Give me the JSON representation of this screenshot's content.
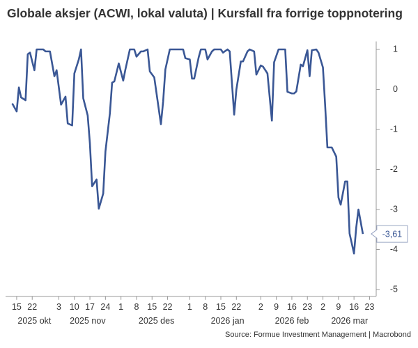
{
  "chart_data": {
    "type": "line",
    "title": "Globale aksjer (ACWI, lokal valuta) | Kursfall fra forrige toppnotering",
    "source": "Source: Formue Investment Management | Macrobond",
    "x": [
      "2025-10-13",
      "2025-10-15",
      "2025-10-16",
      "2025-10-17",
      "2025-10-19",
      "2025-10-20",
      "2025-10-21",
      "2025-10-23",
      "2025-10-24",
      "2025-10-27",
      "2025-10-28",
      "2025-10-30",
      "2025-11-01",
      "2025-11-02",
      "2025-11-04",
      "2025-11-06",
      "2025-11-07",
      "2025-11-09",
      "2025-11-10",
      "2025-11-12",
      "2025-11-13",
      "2025-11-14",
      "2025-11-16",
      "2025-11-17",
      "2025-11-18",
      "2025-11-20",
      "2025-11-21",
      "2025-11-23",
      "2025-11-24",
      "2025-11-26",
      "2025-11-27",
      "2025-11-28",
      "2025-11-30",
      "2025-12-02",
      "2025-12-03",
      "2025-12-05",
      "2025-12-07",
      "2025-12-08",
      "2025-12-10",
      "2025-12-11",
      "2025-12-13",
      "2025-12-14",
      "2025-12-16",
      "2025-12-19",
      "2025-12-20",
      "2025-12-21",
      "2025-12-23",
      "2025-12-29",
      "2025-12-30",
      "2026-01-01",
      "2026-01-02",
      "2026-01-03",
      "2026-01-05",
      "2026-01-06",
      "2026-01-08",
      "2026-01-09",
      "2026-01-11",
      "2026-01-12",
      "2026-01-15",
      "2026-01-16",
      "2026-01-18",
      "2026-01-19",
      "2026-01-21",
      "2026-01-22",
      "2026-01-24",
      "2026-01-25",
      "2026-01-27",
      "2026-01-28",
      "2026-01-30",
      "2026-01-31",
      "2026-02-02",
      "2026-02-03",
      "2026-02-05",
      "2026-02-07",
      "2026-02-08",
      "2026-02-10",
      "2026-02-13",
      "2026-02-14",
      "2026-02-16",
      "2026-02-17",
      "2026-02-18",
      "2026-02-20",
      "2026-02-21",
      "2026-02-23",
      "2026-02-24",
      "2026-02-25",
      "2026-02-27",
      "2026-02-28",
      "2026-03-02",
      "2026-03-03",
      "2026-03-04",
      "2026-03-06",
      "2026-03-08",
      "2026-03-09",
      "2026-03-10",
      "2026-03-12",
      "2026-03-13",
      "2026-03-14",
      "2026-03-16",
      "2026-03-17",
      "2026-03-18",
      "2026-03-20"
    ],
    "series": [
      {
        "name": "ACWI",
        "color": "#3a5795",
        "values": [
          -0.35,
          -0.55,
          0.05,
          -0.2,
          -0.27,
          0.88,
          0.92,
          0.48,
          1.0,
          1.0,
          0.95,
          0.95,
          0.33,
          0.48,
          -0.38,
          -0.18,
          -0.85,
          -0.9,
          0.4,
          0.75,
          1.0,
          -0.22,
          -0.65,
          -1.35,
          -2.42,
          -2.25,
          -2.98,
          -2.6,
          -1.55,
          -0.6,
          0.17,
          0.2,
          0.65,
          0.22,
          0.5,
          1.0,
          1.0,
          0.82,
          0.95,
          0.95,
          1.0,
          0.45,
          0.3,
          -0.87,
          -0.3,
          0.5,
          1.0,
          1.0,
          0.78,
          0.75,
          0.27,
          0.27,
          0.8,
          1.0,
          1.0,
          0.75,
          0.95,
          1.0,
          1.0,
          0.92,
          1.0,
          0.95,
          -0.63,
          0.0,
          0.7,
          0.7,
          0.95,
          1.0,
          0.95,
          0.37,
          0.6,
          0.57,
          0.4,
          -0.78,
          0.68,
          1.0,
          1.0,
          -0.06,
          -0.1,
          -0.1,
          -0.05,
          0.62,
          0.58,
          0.98,
          0.33,
          0.98,
          1.0,
          0.92,
          0.55,
          -0.4,
          -1.45,
          -1.45,
          -1.68,
          -2.7,
          -2.88,
          -2.3,
          -2.3,
          -3.6,
          -4.1,
          -3.45,
          -3.0,
          -3.61
        ],
        "value_labels": [
          null,
          null,
          null,
          null,
          null,
          null,
          null,
          null,
          null,
          null,
          null,
          null,
          null,
          null,
          null,
          null,
          null,
          null,
          null,
          null,
          null,
          null,
          null,
          null,
          null,
          null,
          null,
          null,
          null,
          null,
          null,
          null,
          null,
          null,
          null,
          null,
          null,
          null,
          null,
          null,
          null,
          null,
          null,
          null,
          null,
          null,
          null,
          null,
          null,
          null,
          null,
          null,
          null,
          null,
          null,
          null,
          null,
          null,
          null,
          null,
          null,
          null,
          null,
          null,
          null,
          null,
          null,
          null,
          null,
          null,
          null,
          null,
          null,
          null,
          null,
          null,
          null,
          null,
          null,
          null,
          null,
          null,
          null,
          null,
          null,
          null,
          null,
          null,
          null,
          null,
          null,
          null,
          null,
          null,
          null,
          null,
          null,
          null,
          null,
          null,
          null,
          "-3,61"
        ]
      }
    ],
    "xlim": [
      "2025-10-10",
      "2026-03-26"
    ],
    "xticks": [
      {
        "value": "2025-10-15",
        "label": "15"
      },
      {
        "value": "2025-10-22",
        "label": "22"
      },
      {
        "value": "2025-11-03",
        "label": "3"
      },
      {
        "value": "2025-11-10",
        "label": "10"
      },
      {
        "value": "2025-11-17",
        "label": "17"
      },
      {
        "value": "2025-11-24",
        "label": "24"
      },
      {
        "value": "2025-12-01",
        "label": "1"
      },
      {
        "value": "2025-12-08",
        "label": "8"
      },
      {
        "value": "2025-12-15",
        "label": "15"
      },
      {
        "value": "2025-12-22",
        "label": "22"
      },
      {
        "value": "2026-01-01",
        "label": "1"
      },
      {
        "value": "2026-01-08",
        "label": "8"
      },
      {
        "value": "2026-01-15",
        "label": "15"
      },
      {
        "value": "2026-01-22",
        "label": "22"
      },
      {
        "value": "2026-02-02",
        "label": "2"
      },
      {
        "value": "2026-02-09",
        "label": "9"
      },
      {
        "value": "2026-02-16",
        "label": "16"
      },
      {
        "value": "2026-02-23",
        "label": "23"
      },
      {
        "value": "2026-03-02",
        "label": "2"
      },
      {
        "value": "2026-03-09",
        "label": "9"
      },
      {
        "value": "2026-03-16",
        "label": "16"
      },
      {
        "value": "2026-03-23",
        "label": "23"
      }
    ],
    "xgroups": [
      {
        "value": "2025-10-23",
        "label": "2025 okt"
      },
      {
        "value": "2025-11-16",
        "label": "2025 nov"
      },
      {
        "value": "2025-12-17",
        "label": "2025 des"
      },
      {
        "value": "2026-01-18",
        "label": "2026 jan"
      },
      {
        "value": "2026-02-16",
        "label": "2026 feb"
      },
      {
        "value": "2026-03-14",
        "label": "2026 mar"
      }
    ],
    "ylim": [
      -5.1,
      1.2
    ],
    "yticks": [
      1,
      0,
      -1,
      -2,
      -3,
      -4,
      -5
    ],
    "y_axis_side": "right",
    "grid": false
  }
}
